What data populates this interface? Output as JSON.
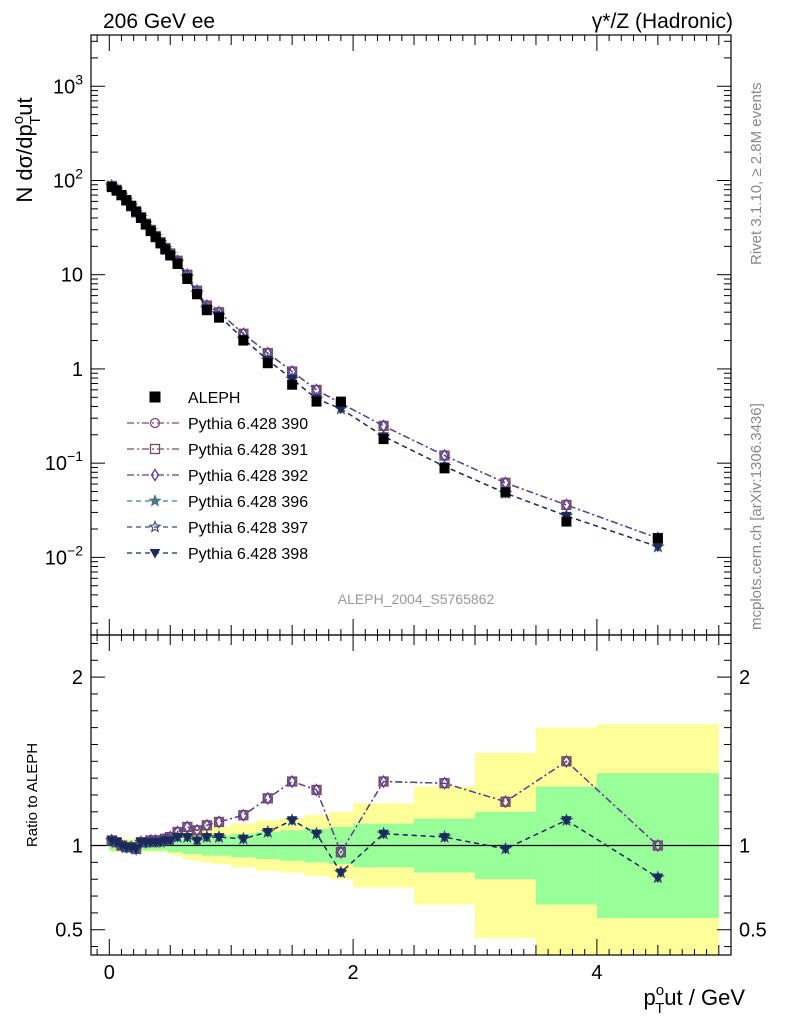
{
  "header": {
    "left": "206 GeV ee",
    "right": "γ*/Z (Hadronic)"
  },
  "side_labels": {
    "rivet": "Rivet 3.1.10, ≥ 2.8M events",
    "mcplots": "mcplots.cern.ch [arXiv:1306.3436]"
  },
  "watermark": "ALEPH_2004_S5765862",
  "axes": {
    "main_ylabel": "N dσ/dp",
    "main_ylabel_sub": "T",
    "main_ylabel_sup": "o",
    "main_ylabel_tail": "ut",
    "ratio_ylabel": "Ratio to ALEPH",
    "xlabel_p": "p",
    "xlabel_sub": "T",
    "xlabel_sup": "o",
    "xlabel_tail": "ut / GeV"
  },
  "chart_data": {
    "type": "scatter",
    "xlim": [
      -0.15,
      5.1
    ],
    "main_ylim": [
      0.0015,
      3500
    ],
    "main_yscale": "log",
    "ratio_ylim": [
      0.35,
      2.25
    ],
    "x_ticks": [
      0,
      2,
      4
    ],
    "main_y_ticks": [
      {
        "v": 0.01,
        "base": "10",
        "exp": "−2"
      },
      {
        "v": 0.1,
        "base": "10",
        "exp": "−1"
      },
      {
        "v": 1,
        "base": "1",
        "exp": ""
      },
      {
        "v": 10,
        "base": "10",
        "exp": ""
      },
      {
        "v": 100,
        "base": "10",
        "exp": "2"
      },
      {
        "v": 1000,
        "base": "10",
        "exp": "3"
      }
    ],
    "ratio_y_ticks": [
      {
        "v": 0.5,
        "label": "0.5"
      },
      {
        "v": 1,
        "label": "1"
      },
      {
        "v": 2,
        "label": "2"
      }
    ],
    "x": [
      0.02,
      0.06,
      0.1,
      0.14,
      0.18,
      0.22,
      0.26,
      0.3,
      0.34,
      0.38,
      0.42,
      0.46,
      0.5,
      0.56,
      0.64,
      0.72,
      0.8,
      0.9,
      1.1,
      1.3,
      1.5,
      1.7,
      1.9,
      2.25,
      2.75,
      3.25,
      3.75,
      4.5
    ],
    "edges": [
      0,
      0.04,
      0.08,
      0.12,
      0.16,
      0.2,
      0.24,
      0.28,
      0.32,
      0.36,
      0.4,
      0.44,
      0.48,
      0.52,
      0.6,
      0.68,
      0.76,
      0.84,
      1.0,
      1.2,
      1.4,
      1.6,
      1.8,
      2.0,
      2.5,
      3.0,
      3.5,
      4.0,
      5.0
    ],
    "data": {
      "name": "ALEPH",
      "values": [
        85,
        78,
        70,
        62,
        54,
        47,
        40,
        34,
        29,
        25,
        21.5,
        18.5,
        16,
        13,
        9,
        6.2,
        4.2,
        3.5,
        2.0,
        1.15,
        0.68,
        0.45,
        0.45,
        0.18,
        0.088,
        0.049,
        0.024,
        0.016
      ]
    },
    "bands": {
      "inner_green": [
        0.03,
        0.03,
        0.03,
        0.03,
        0.03,
        0.03,
        0.03,
        0.03,
        0.03,
        0.03,
        0.03,
        0.03,
        0.04,
        0.04,
        0.05,
        0.05,
        0.06,
        0.06,
        0.07,
        0.08,
        0.09,
        0.1,
        0.11,
        0.13,
        0.16,
        0.2,
        0.35,
        0.43
      ],
      "outer_yellow": [
        0.04,
        0.04,
        0.04,
        0.04,
        0.04,
        0.04,
        0.04,
        0.04,
        0.04,
        0.04,
        0.04,
        0.04,
        0.05,
        0.06,
        0.08,
        0.09,
        0.1,
        0.11,
        0.13,
        0.15,
        0.16,
        0.18,
        0.2,
        0.25,
        0.35,
        0.55,
        0.7,
        0.72
      ]
    },
    "ratio_upper": [
      1.03,
      1.02,
      1.0,
      0.99,
      0.99,
      0.98,
      1.02,
      1.02,
      1.03,
      1.03,
      1.03,
      1.04,
      1.05,
      1.08,
      1.11,
      1.09,
      1.12,
      1.14,
      1.18,
      1.28,
      1.38,
      1.33,
      0.96,
      1.38,
      1.37,
      1.26,
      1.5,
      1.0
    ],
    "ratio_lower": [
      1.03,
      1.02,
      1.0,
      0.99,
      0.99,
      0.98,
      1.02,
      1.02,
      1.02,
      1.02,
      1.02,
      1.03,
      1.03,
      1.05,
      1.05,
      1.03,
      1.05,
      1.05,
      1.04,
      1.08,
      1.15,
      1.07,
      0.84,
      1.07,
      1.05,
      0.98,
      1.15,
      0.81
    ],
    "series": [
      {
        "name": "Pythia 6.428 390",
        "marker": "circle",
        "color": "#7a4a7a",
        "dash": "7,3,2,3",
        "group": "upper"
      },
      {
        "name": "Pythia 6.428 391",
        "marker": "square",
        "color": "#7a4a5a",
        "dash": "7,3,2,3",
        "group": "upper"
      },
      {
        "name": "Pythia 6.428 392",
        "marker": "diamond",
        "color": "#5a3f9a",
        "dash": "7,3,2,3",
        "group": "upper"
      },
      {
        "name": "Pythia 6.428 396",
        "marker": "star",
        "color": "#4a7a8a",
        "dash": "5,4",
        "group": "lower"
      },
      {
        "name": "Pythia 6.428 397",
        "marker": "star-open",
        "color": "#3a4a7a",
        "dash": "5,4",
        "group": "lower"
      },
      {
        "name": "Pythia 6.428 398",
        "marker": "triangle-down",
        "color": "#1a2a5a",
        "dash": "5,4",
        "group": "lower"
      }
    ],
    "legend_position": "left-middle",
    "colors": {
      "green_band": "#99ff99",
      "yellow_band": "#ffff99"
    }
  }
}
